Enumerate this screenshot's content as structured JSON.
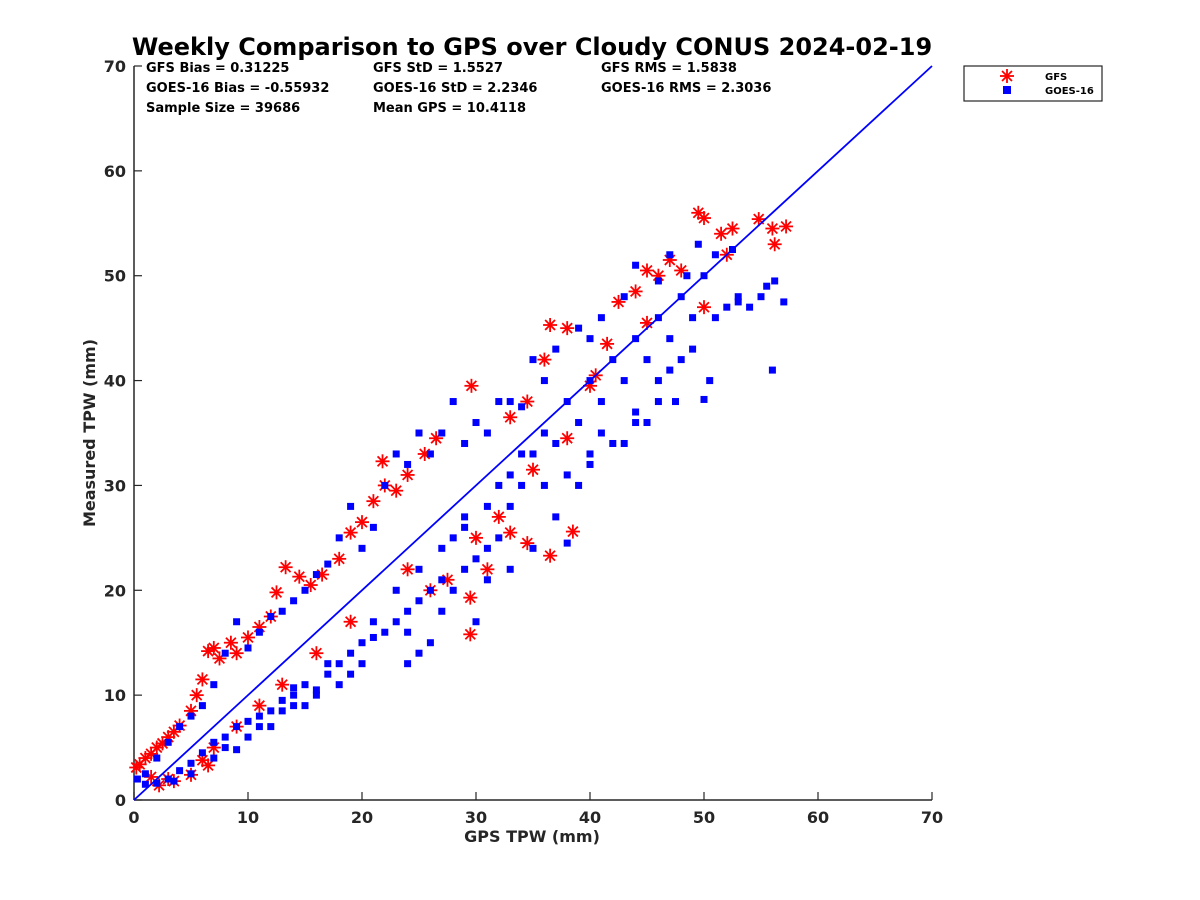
{
  "chart_data": {
    "type": "scatter",
    "title": "Weekly Comparison to GPS over Cloudy CONUS 2024-02-19",
    "xlabel": "GPS TPW (mm)",
    "ylabel": "Measured TPW (mm)",
    "xlim": [
      0,
      70
    ],
    "ylim": [
      0,
      70
    ],
    "xticks": [
      "0",
      "10",
      "20",
      "30",
      "40",
      "50",
      "60",
      "70"
    ],
    "yticks": [
      "0",
      "10",
      "20",
      "30",
      "40",
      "50",
      "60",
      "70"
    ],
    "grid": false,
    "legend_position": "outside-top-right",
    "stats": [
      [
        "GFS Bias = 0.31225",
        "GFS StD = 1.5527",
        "GFS RMS = 1.5838"
      ],
      [
        "GOES-16 Bias = -0.55932",
        "GOES-16 StD = 2.2346",
        "GOES-16 RMS = 2.3036"
      ],
      [
        "Sample Size = 39686",
        "Mean GPS = 10.4118"
      ]
    ],
    "reference_line": {
      "x": [
        0,
        70
      ],
      "y": [
        0,
        70
      ],
      "color": "#0000ff"
    },
    "series": [
      {
        "name": "GFS",
        "marker": "asterisk",
        "color": "#ff0000",
        "points": [
          [
            0.2,
            3.1
          ],
          [
            0.5,
            3.4
          ],
          [
            1,
            4
          ],
          [
            1.5,
            4.4
          ],
          [
            2,
            5
          ],
          [
            2.5,
            5.4
          ],
          [
            3,
            6
          ],
          [
            3.5,
            6.5
          ],
          [
            4,
            7.1
          ],
          [
            2.2,
            1.4
          ],
          [
            3.5,
            1.8
          ],
          [
            5,
            2.4
          ],
          [
            6.5,
            3.3
          ],
          [
            1.5,
            2.2
          ],
          [
            5,
            8.5
          ],
          [
            5.5,
            10
          ],
          [
            6,
            11.5
          ],
          [
            6.5,
            14.2
          ],
          [
            7,
            14.5
          ],
          [
            7.5,
            13.5
          ],
          [
            8.5,
            15
          ],
          [
            9,
            14
          ],
          [
            10,
            15.5
          ],
          [
            11,
            16.5
          ],
          [
            12,
            17.5
          ],
          [
            12.5,
            19.8
          ],
          [
            13.3,
            22.2
          ],
          [
            14.5,
            21.3
          ],
          [
            15.5,
            20.5
          ],
          [
            16.5,
            21.5
          ],
          [
            18,
            23
          ],
          [
            19,
            25.5
          ],
          [
            20,
            26.5
          ],
          [
            21,
            28.5
          ],
          [
            22,
            30
          ],
          [
            23,
            29.5
          ],
          [
            24,
            31
          ],
          [
            25.5,
            33
          ],
          [
            26.5,
            34.5
          ],
          [
            21.8,
            32.3
          ],
          [
            29.6,
            39.5
          ],
          [
            33,
            36.5
          ],
          [
            34.5,
            38
          ],
          [
            36,
            42
          ],
          [
            36.5,
            45.3
          ],
          [
            38,
            45
          ],
          [
            40.5,
            40.5
          ],
          [
            41.5,
            43.5
          ],
          [
            42.5,
            47.5
          ],
          [
            44,
            48.5
          ],
          [
            45,
            50.5
          ],
          [
            46,
            50
          ],
          [
            47,
            51.5
          ],
          [
            48,
            50.5
          ],
          [
            49.5,
            56
          ],
          [
            50,
            55.5
          ],
          [
            51.5,
            54
          ],
          [
            52.5,
            54.5
          ],
          [
            54.8,
            55.4
          ],
          [
            56,
            54.5
          ],
          [
            57.2,
            54.7
          ],
          [
            56.2,
            53
          ],
          [
            52,
            52
          ],
          [
            50,
            47
          ],
          [
            45,
            45.5
          ],
          [
            40,
            39.5
          ],
          [
            38,
            34.5
          ],
          [
            35,
            31.5
          ],
          [
            32,
            27
          ],
          [
            33,
            25.5
          ],
          [
            34.5,
            24.5
          ],
          [
            36.5,
            23.3
          ],
          [
            38.5,
            25.6
          ],
          [
            29.5,
            19.3
          ],
          [
            29.5,
            15.8
          ],
          [
            27.5,
            21
          ],
          [
            31,
            22
          ],
          [
            30,
            25
          ],
          [
            26,
            20
          ],
          [
            24,
            22
          ],
          [
            19,
            17
          ],
          [
            16,
            14
          ],
          [
            13,
            11
          ],
          [
            11,
            9
          ],
          [
            9,
            7
          ],
          [
            7,
            5
          ],
          [
            6,
            3.8
          ],
          [
            3,
            2
          ]
        ]
      },
      {
        "name": "GOES-16",
        "marker": "square",
        "color": "#0000ff",
        "points": [
          [
            33,
            22
          ],
          [
            35,
            24
          ],
          [
            37,
            27
          ],
          [
            38,
            24.5
          ],
          [
            39,
            30
          ],
          [
            40,
            32
          ],
          [
            41,
            35
          ],
          [
            43,
            34
          ],
          [
            44,
            37
          ],
          [
            45,
            36
          ],
          [
            46,
            40
          ],
          [
            47,
            41
          ],
          [
            47.5,
            38
          ],
          [
            48,
            42
          ],
          [
            49,
            43
          ],
          [
            50,
            38.2
          ],
          [
            50.5,
            40
          ],
          [
            51,
            46
          ],
          [
            52,
            47
          ],
          [
            53,
            48
          ],
          [
            54,
            47
          ],
          [
            55,
            48
          ],
          [
            55.5,
            49
          ],
          [
            56.2,
            49.5
          ],
          [
            56,
            41
          ],
          [
            57,
            47.5
          ],
          [
            53,
            47.5
          ],
          [
            52.5,
            52.5
          ],
          [
            51,
            52
          ],
          [
            49.5,
            53
          ],
          [
            48.5,
            50
          ],
          [
            47,
            52
          ],
          [
            46,
            49.5
          ],
          [
            44,
            51
          ],
          [
            43,
            48
          ],
          [
            41,
            46
          ],
          [
            40,
            44
          ],
          [
            39,
            45
          ],
          [
            37,
            43
          ],
          [
            36,
            40
          ],
          [
            35,
            42
          ],
          [
            34,
            37.5
          ],
          [
            33,
            38
          ],
          [
            32,
            38
          ],
          [
            31,
            35
          ],
          [
            30,
            36
          ],
          [
            29,
            34
          ],
          [
            28,
            38
          ],
          [
            27,
            35
          ],
          [
            26,
            33
          ],
          [
            25,
            35
          ],
          [
            24,
            32
          ],
          [
            23,
            33
          ],
          [
            22,
            30
          ],
          [
            21,
            26
          ],
          [
            20,
            24
          ],
          [
            19,
            28
          ],
          [
            18,
            25
          ],
          [
            17,
            22.5
          ],
          [
            16,
            21.5
          ],
          [
            15,
            20
          ],
          [
            14,
            19
          ],
          [
            13,
            18
          ],
          [
            12,
            17.5
          ],
          [
            11,
            16
          ],
          [
            10,
            14.5
          ],
          [
            9,
            17
          ],
          [
            8,
            14
          ],
          [
            7,
            11
          ],
          [
            6,
            9
          ],
          [
            5,
            8
          ],
          [
            4,
            7
          ],
          [
            3,
            5.5
          ],
          [
            2,
            4
          ],
          [
            1,
            2.5
          ],
          [
            0.3,
            2
          ],
          [
            1,
            1.5
          ],
          [
            2,
            1.6
          ],
          [
            3,
            2
          ],
          [
            4,
            2.8
          ],
          [
            5,
            3.5
          ],
          [
            6,
            4.5
          ],
          [
            7,
            5.5
          ],
          [
            8,
            6
          ],
          [
            9,
            7
          ],
          [
            10,
            7.5
          ],
          [
            11,
            8
          ],
          [
            12,
            8.5
          ],
          [
            13,
            9.5
          ],
          [
            14,
            10
          ],
          [
            15,
            9
          ],
          [
            16,
            10.5
          ],
          [
            17,
            12
          ],
          [
            18,
            13
          ],
          [
            19,
            14
          ],
          [
            20,
            15
          ],
          [
            21,
            15.5
          ],
          [
            22,
            16
          ],
          [
            23,
            17
          ],
          [
            24,
            18
          ],
          [
            25,
            19
          ],
          [
            26,
            20
          ],
          [
            27,
            21
          ],
          [
            28,
            20
          ],
          [
            29,
            22
          ],
          [
            30,
            23
          ],
          [
            31,
            24
          ],
          [
            32,
            25
          ],
          [
            33,
            28
          ],
          [
            34,
            30
          ],
          [
            36,
            30
          ],
          [
            38,
            31
          ],
          [
            40,
            33
          ],
          [
            42,
            34
          ],
          [
            44,
            36
          ],
          [
            46,
            38
          ],
          [
            31,
            21
          ],
          [
            30,
            17
          ],
          [
            26,
            15
          ],
          [
            25,
            14
          ],
          [
            24,
            16
          ],
          [
            20,
            13
          ],
          [
            18,
            11
          ],
          [
            16,
            10
          ],
          [
            14,
            9
          ],
          [
            12,
            7
          ],
          [
            10,
            6
          ],
          [
            8,
            5
          ],
          [
            7,
            4
          ],
          [
            5,
            2.5
          ],
          [
            3.5,
            1.8
          ],
          [
            14,
            10.7
          ],
          [
            19,
            12
          ],
          [
            24,
            13
          ],
          [
            27,
            18
          ],
          [
            28,
            25
          ],
          [
            29,
            27
          ],
          [
            32,
            30
          ],
          [
            34,
            33
          ],
          [
            36,
            35
          ],
          [
            38,
            38
          ],
          [
            40,
            40
          ],
          [
            42,
            42
          ],
          [
            44,
            44
          ],
          [
            46,
            46
          ],
          [
            48,
            48
          ],
          [
            50,
            50
          ],
          [
            9,
            4.8
          ],
          [
            11,
            7
          ],
          [
            13,
            8.5
          ],
          [
            15,
            11
          ],
          [
            17,
            13
          ],
          [
            21,
            17
          ],
          [
            23,
            20
          ],
          [
            25,
            22
          ],
          [
            27,
            24
          ],
          [
            29,
            26
          ],
          [
            31,
            28
          ],
          [
            33,
            31
          ],
          [
            35,
            33
          ],
          [
            37,
            34
          ],
          [
            39,
            36
          ],
          [
            41,
            38
          ],
          [
            43,
            40
          ],
          [
            45,
            42
          ],
          [
            47,
            44
          ],
          [
            49,
            46
          ]
        ]
      }
    ]
  }
}
